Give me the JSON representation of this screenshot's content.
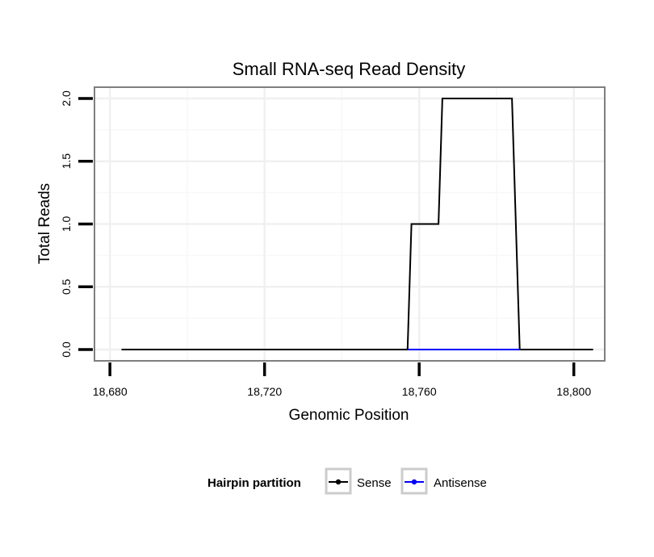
{
  "chart_data": {
    "type": "line",
    "title": "Small RNA-seq Read Density",
    "xlabel": "Genomic Position",
    "ylabel": "Total Reads",
    "xlim": [
      18676,
      18808
    ],
    "ylim": [
      -0.09,
      2.09
    ],
    "x_ticks": [
      18680,
      18720,
      18760,
      18800
    ],
    "x_tick_labels": [
      "18,680",
      "18,720",
      "18,760",
      "18,800"
    ],
    "y_ticks": [
      0,
      0.5,
      1,
      1.5,
      2
    ],
    "y_tick_labels": [
      "0.0",
      "0.5",
      "1.0",
      "1.5",
      "2.0"
    ],
    "grid": true,
    "legend_title": "Hairpin partition",
    "legend_position": "bottom",
    "series": [
      {
        "name": "Sense",
        "color": "#000000",
        "points": [
          [
            18683,
            0
          ],
          [
            18757,
            0
          ],
          [
            18758,
            1
          ],
          [
            18765,
            1
          ],
          [
            18766,
            2
          ],
          [
            18784,
            2
          ],
          [
            18786,
            0
          ],
          [
            18805,
            0
          ]
        ]
      },
      {
        "name": "Antisense",
        "color": "#0000ff",
        "points": [
          [
            18757,
            0
          ],
          [
            18786,
            0
          ]
        ]
      }
    ]
  }
}
